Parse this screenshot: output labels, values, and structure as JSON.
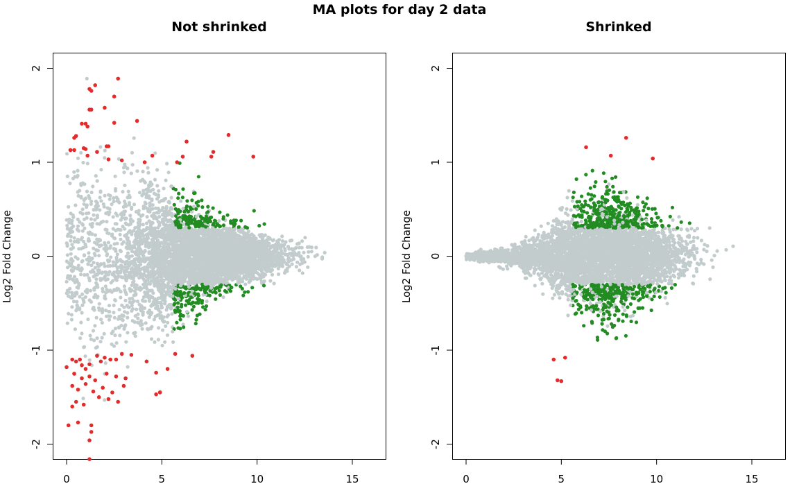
{
  "figure": {
    "title": "MA plots for day 2 data"
  },
  "colors": {
    "background_points": "#c3cccc",
    "up_sig": "#228b22",
    "red_large": "#e32b2b"
  },
  "chart_data": [
    {
      "type": "scatter",
      "title": "Not shrinked",
      "xlabel": "",
      "ylabel": "Log2 Fold Change",
      "xlim": [
        0,
        16.2
      ],
      "ylim": [
        -2.16,
        2.0
      ],
      "xticks": [
        "0",
        "5",
        "10",
        "15"
      ],
      "yticks": [
        "-2",
        "-1",
        "0",
        "1",
        "2"
      ],
      "grid": false,
      "series": [
        {
          "values": [
            [
              1.2,
              1.78
            ],
            [
              1.3,
              1.76
            ],
            [
              1.5,
              1.82
            ],
            [
              2.7,
              1.89
            ],
            [
              1.2,
              1.56
            ],
            [
              1.3,
              1.56
            ],
            [
              2.0,
              1.58
            ],
            [
              2.5,
              1.7
            ],
            [
              0.4,
              1.26
            ],
            [
              0.5,
              1.28
            ],
            [
              0.8,
              1.41
            ],
            [
              1.0,
              1.41
            ],
            [
              1.1,
              1.38
            ],
            [
              2.5,
              1.42
            ],
            [
              3.7,
              1.44
            ],
            [
              0.2,
              1.13
            ],
            [
              0.4,
              1.13
            ],
            [
              0.9,
              1.15
            ],
            [
              1.0,
              1.14
            ],
            [
              1.6,
              1.11
            ],
            [
              2.1,
              1.17
            ],
            [
              2.2,
              1.17
            ],
            [
              1.1,
              1.07
            ],
            [
              2.2,
              1.03
            ],
            [
              2.9,
              1.02
            ],
            [
              4.1,
              1.0
            ],
            [
              4.5,
              1.07
            ],
            [
              5.8,
              1.0
            ],
            [
              6.1,
              1.06
            ],
            [
              6.3,
              1.22
            ],
            [
              8.5,
              1.29
            ],
            [
              7.7,
              1.11
            ],
            [
              7.6,
              1.06
            ],
            [
              9.8,
              1.06
            ],
            [
              0.0,
              -1.18
            ],
            [
              0.3,
              -1.1
            ],
            [
              0.5,
              -1.12
            ],
            [
              0.7,
              -1.1
            ],
            [
              0.8,
              -1.16
            ],
            [
              1.0,
              -1.2
            ],
            [
              1.2,
              -1.15
            ],
            [
              1.6,
              -1.06
            ],
            [
              1.8,
              -1.12
            ],
            [
              2.0,
              -1.08
            ],
            [
              2.3,
              -1.1
            ],
            [
              2.6,
              -1.1
            ],
            [
              2.9,
              -1.04
            ],
            [
              3.4,
              -1.05
            ],
            [
              4.2,
              -1.12
            ],
            [
              0.4,
              -1.25
            ],
            [
              0.8,
              -1.3
            ],
            [
              1.2,
              -1.28
            ],
            [
              1.5,
              -1.32
            ],
            [
              2.1,
              -1.25
            ],
            [
              2.6,
              -1.28
            ],
            [
              3.1,
              -1.3
            ],
            [
              0.3,
              -1.38
            ],
            [
              0.6,
              -1.42
            ],
            [
              1.0,
              -1.36
            ],
            [
              1.4,
              -1.44
            ],
            [
              1.9,
              -1.4
            ],
            [
              2.4,
              -1.45
            ],
            [
              3.0,
              -1.38
            ],
            [
              0.5,
              -1.55
            ],
            [
              0.9,
              -1.58
            ],
            [
              1.7,
              -1.5
            ],
            [
              2.2,
              -1.52
            ],
            [
              2.7,
              -1.55
            ],
            [
              0.3,
              -1.6
            ],
            [
              0.1,
              -1.8
            ],
            [
              0.6,
              -1.77
            ],
            [
              1.3,
              -1.8
            ],
            [
              1.3,
              -1.87
            ],
            [
              1.2,
              -1.96
            ],
            [
              1.2,
              -2.16
            ],
            [
              4.7,
              -1.47
            ],
            [
              4.9,
              -1.45
            ],
            [
              5.7,
              -1.04
            ],
            [
              6.6,
              -1.06
            ],
            [
              5.3,
              -1.2
            ],
            [
              4.7,
              -1.24
            ]
          ]
        }
      ]
    },
    {
      "type": "scatter",
      "title": "Shrinked",
      "xlabel": "",
      "ylabel": "Log2 Fold Change",
      "xlim": [
        0,
        16.2
      ],
      "ylim": [
        -2.16,
        2.0
      ],
      "xticks": [
        "0",
        "5",
        "10",
        "15"
      ],
      "yticks": [
        "-2",
        "-1",
        "0",
        "1",
        "2"
      ],
      "grid": false,
      "series": [
        {
          "values": [
            [
              8.4,
              1.26
            ],
            [
              6.3,
              1.16
            ],
            [
              7.6,
              1.07
            ],
            [
              9.8,
              1.04
            ],
            [
              4.6,
              -1.1
            ],
            [
              5.2,
              -1.08
            ],
            [
              4.8,
              -1.32
            ],
            [
              5.0,
              -1.33
            ]
          ]
        }
      ]
    }
  ]
}
